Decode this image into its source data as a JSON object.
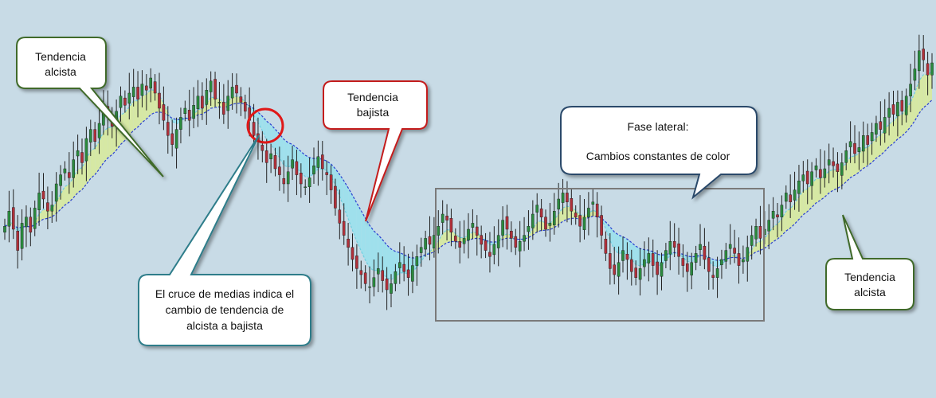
{
  "chart_data": {
    "type": "candlestick",
    "description_series": [
      {
        "name": "",
        "role": "fast-moving-average"
      },
      {
        "name": "",
        "role": "slow-moving-average"
      }
    ],
    "colors": {
      "background": "#c8dbe6",
      "bull_fill": "#d6e8a4",
      "bear_fill": "#9fe0ec",
      "fast_ma": "#6fcfe0",
      "slow_ma": "#2a3fd0",
      "candle_up": "#2b8a3e",
      "candle_down": "#b0303a",
      "wick": "#222222",
      "range_box": "#7a7a7a",
      "cross_circle": "#e01818"
    },
    "close": [
      41,
      46,
      40,
      33,
      42,
      44,
      39,
      47,
      52,
      50,
      46,
      48,
      55,
      58,
      60,
      57,
      63,
      66,
      62,
      70,
      73,
      69,
      75,
      80,
      77,
      74,
      79,
      84,
      81,
      85,
      87,
      83,
      88,
      86,
      90,
      85,
      80,
      76,
      71,
      68,
      73,
      77,
      80,
      76,
      81,
      84,
      80,
      86,
      89,
      83,
      82,
      78,
      84,
      87,
      85,
      82,
      79,
      76,
      71,
      69,
      66,
      62,
      65,
      60,
      58,
      55,
      59,
      63,
      58,
      55,
      54,
      57,
      61,
      64,
      60,
      58,
      53,
      47,
      42,
      38,
      34,
      30,
      27,
      25,
      22,
      21,
      24,
      27,
      23,
      20,
      22,
      26,
      29,
      26,
      24,
      28,
      31,
      34,
      37,
      35,
      38,
      41,
      45,
      43,
      39,
      36,
      34,
      37,
      40,
      42,
      38,
      35,
      33,
      31,
      35,
      38,
      43,
      40,
      37,
      34,
      36,
      38,
      41,
      45,
      48,
      44,
      40,
      42,
      46,
      50,
      52,
      49,
      46,
      44,
      41,
      44,
      47,
      49,
      44,
      38,
      32,
      27,
      25,
      29,
      33,
      30,
      26,
      24,
      27,
      30,
      32,
      28,
      25,
      29,
      33,
      36,
      34,
      31,
      28,
      26,
      29,
      32,
      35,
      30,
      26,
      24,
      27,
      30,
      33,
      35,
      32,
      28,
      30,
      34,
      38,
      41,
      37,
      40,
      43,
      46,
      44,
      48,
      52,
      49,
      53,
      56,
      58,
      55,
      59,
      61,
      57,
      60,
      63,
      61,
      59,
      62,
      66,
      69,
      65,
      67,
      71,
      68,
      72,
      75,
      73,
      77,
      80,
      78,
      82,
      79,
      84,
      88,
      93,
      99,
      96,
      91,
      95
    ]
  },
  "annotations": {
    "bull_left": {
      "line1": "Tendencia",
      "line2": "alcista"
    },
    "bear": {
      "line1": "Tendencia",
      "line2": "bajista"
    },
    "cross": {
      "line1": "El cruce de medias indica el",
      "line2": "cambio de tendencia de",
      "line3": "alcista a bajista"
    },
    "lateral": {
      "line1": "Fase lateral:",
      "line2": "Cambios constantes de color"
    },
    "bull_right": {
      "line1": "Tendencia",
      "line2": "alcista"
    }
  }
}
